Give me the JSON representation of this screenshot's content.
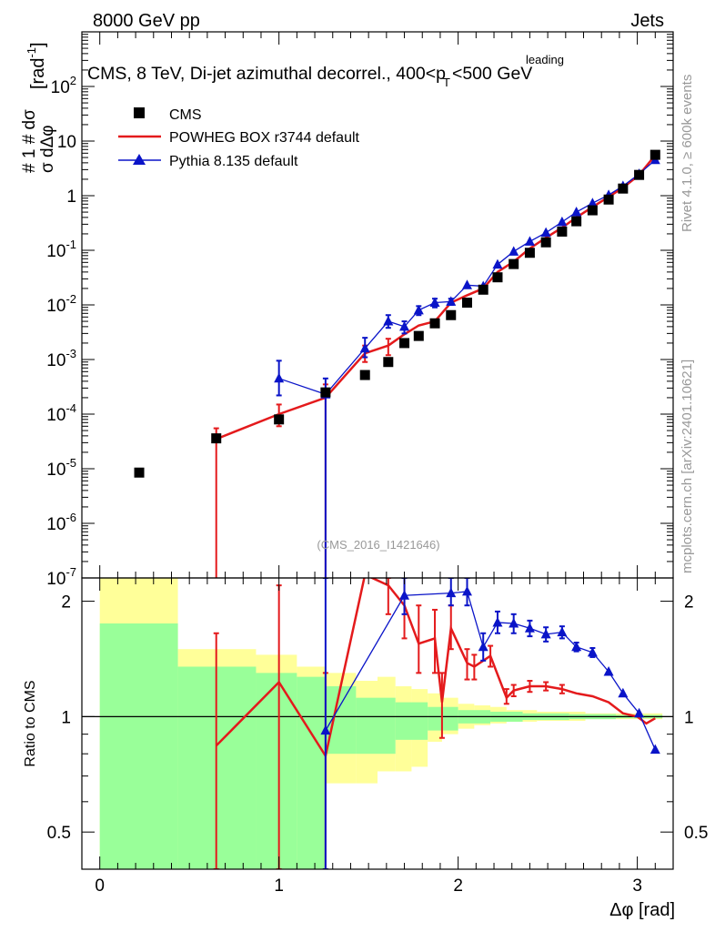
{
  "header": {
    "left": "8000 GeV pp",
    "right": "Jets"
  },
  "title": {
    "main": "CMS, 8 TeV, Di-jet azimuthal decorrel., 400<p",
    "sup": "leading",
    "sub": "T",
    "tail": "<500 GeV"
  },
  "ylabel": {
    "top": "# 1  # dσ",
    "bottom": "σ    dΔφ",
    "unit": "[rad",
    "unit_sup": "-1",
    "unit_close": "]"
  },
  "ratio_ylabel": "Ratio to CMS",
  "xlabel": "Δφ [rad]",
  "watermark": "(CMS_2016_I1421646)",
  "side_top": "Rivet 4.1.0, ≥ 600k events",
  "side_bottom": "mcplots.cern.ch [arXiv:2401.10621]",
  "legend": {
    "cms": "CMS",
    "powheg": "POWHEG BOX r3744 default",
    "pythia": "Pythia 8.135 default"
  },
  "colors": {
    "data": "#000000",
    "powheg": "#e41a1c",
    "pythia": "#0a14c8",
    "band_stat": "#99ff99",
    "band_total": "#ffff99"
  },
  "chart_data": {
    "type": "line",
    "xlim": [
      -0.1,
      3.2
    ],
    "main_ylim": [
      1e-07,
      1000
    ],
    "ratio_ylim": [
      0.4,
      2.3
    ],
    "main_yticks": [
      "10^-7",
      "10^-6",
      "10^-5",
      "10^-4",
      "10^-3",
      "10^-2",
      "10^-1",
      "1",
      "10",
      "10^2"
    ],
    "xticks": [
      "0",
      "1",
      "2",
      "3"
    ],
    "ratio_yticks": [
      "0.5",
      "1",
      "2"
    ],
    "x_edges": [
      0,
      0.436,
      0.872,
      1.1,
      1.26,
      1.43,
      1.55,
      1.65,
      1.74,
      1.83,
      1.91,
      2.0,
      2.09,
      2.18,
      2.27,
      2.36,
      2.44,
      2.53,
      2.62,
      2.71,
      2.8,
      2.88,
      2.97,
      3.05,
      3.14
    ],
    "cms": [
      {
        "x": 0.22,
        "y": 8.5e-06
      },
      {
        "x": 0.65,
        "y": 3.6e-05
      },
      {
        "x": 1.0,
        "y": 8e-05
      },
      {
        "x": 1.26,
        "y": 0.00025
      },
      {
        "x": 1.48,
        "y": 0.00052
      },
      {
        "x": 1.61,
        "y": 0.0009
      },
      {
        "x": 1.7,
        "y": 0.002
      },
      {
        "x": 1.78,
        "y": 0.0027
      },
      {
        "x": 1.87,
        "y": 0.0046
      },
      {
        "x": 1.96,
        "y": 0.0065
      },
      {
        "x": 2.05,
        "y": 0.011
      },
      {
        "x": 2.14,
        "y": 0.019
      },
      {
        "x": 2.22,
        "y": 0.032
      },
      {
        "x": 2.31,
        "y": 0.056
      },
      {
        "x": 2.4,
        "y": 0.09
      },
      {
        "x": 2.49,
        "y": 0.14
      },
      {
        "x": 2.58,
        "y": 0.22
      },
      {
        "x": 2.66,
        "y": 0.34
      },
      {
        "x": 2.75,
        "y": 0.54
      },
      {
        "x": 2.84,
        "y": 0.85
      },
      {
        "x": 2.92,
        "y": 1.35
      },
      {
        "x": 3.01,
        "y": 2.4
      },
      {
        "x": 3.1,
        "y": 5.6
      }
    ],
    "powheg": [
      {
        "x": 0.65,
        "y": 3.5e-05,
        "err_lo": 1e-08,
        "err_hi": 5.5e-05
      },
      {
        "x": 1.0,
        "y": 0.0001,
        "err_lo": 6e-05,
        "err_hi": 0.00015
      },
      {
        "x": 1.26,
        "y": 0.0002,
        "err_lo": 1e-08,
        "err_hi": 0.00035
      },
      {
        "x": 1.48,
        "y": 0.0013,
        "err_lo": 0.0009,
        "err_hi": 0.0018
      },
      {
        "x": 1.61,
        "y": 0.0018,
        "err_lo": 0.0012,
        "err_hi": 0.0024
      },
      {
        "x": 1.7,
        "y": 0.0029
      },
      {
        "x": 1.78,
        "y": 0.0042
      },
      {
        "x": 1.87,
        "y": 0.005
      },
      {
        "x": 1.96,
        "y": 0.011
      },
      {
        "x": 2.05,
        "y": 0.015
      },
      {
        "x": 2.14,
        "y": 0.02
      },
      {
        "x": 2.22,
        "y": 0.04
      },
      {
        "x": 2.31,
        "y": 0.062
      },
      {
        "x": 2.4,
        "y": 0.108
      },
      {
        "x": 2.49,
        "y": 0.17
      },
      {
        "x": 2.58,
        "y": 0.26
      },
      {
        "x": 2.66,
        "y": 0.4
      },
      {
        "x": 2.75,
        "y": 0.62
      },
      {
        "x": 2.84,
        "y": 0.95
      },
      {
        "x": 2.92,
        "y": 1.4
      },
      {
        "x": 3.01,
        "y": 2.4
      },
      {
        "x": 3.1,
        "y": 5.5
      }
    ],
    "pythia": [
      {
        "x": 1.0,
        "y": 0.00045,
        "err_lo": 0.00022,
        "err_hi": 0.00095
      },
      {
        "x": 1.26,
        "y": 0.00023,
        "err_lo": 1e-08,
        "err_hi": 0.00045
      },
      {
        "x": 1.48,
        "y": 0.0016,
        "err_lo": 0.0011,
        "err_hi": 0.0025
      },
      {
        "x": 1.61,
        "y": 0.005,
        "err_lo": 0.0038,
        "err_hi": 0.0065
      },
      {
        "x": 1.7,
        "y": 0.004,
        "err_lo": 0.003,
        "err_hi": 0.005
      },
      {
        "x": 1.78,
        "y": 0.008,
        "err_lo": 0.0065,
        "err_hi": 0.0095
      },
      {
        "x": 1.87,
        "y": 0.011,
        "err_lo": 0.009,
        "err_hi": 0.013
      },
      {
        "x": 1.96,
        "y": 0.0115,
        "err_lo": 0.01,
        "err_hi": 0.013
      },
      {
        "x": 2.05,
        "y": 0.023
      },
      {
        "x": 2.14,
        "y": 0.022
      },
      {
        "x": 2.22,
        "y": 0.055
      },
      {
        "x": 2.31,
        "y": 0.095
      },
      {
        "x": 2.4,
        "y": 0.145
      },
      {
        "x": 2.49,
        "y": 0.21
      },
      {
        "x": 2.58,
        "y": 0.33
      },
      {
        "x": 2.66,
        "y": 0.5
      },
      {
        "x": 2.75,
        "y": 0.73
      },
      {
        "x": 2.84,
        "y": 1.03
      },
      {
        "x": 2.92,
        "y": 1.5
      },
      {
        "x": 3.01,
        "y": 2.5
      },
      {
        "x": 3.1,
        "y": 4.5
      }
    ],
    "ratio_powheg": [
      {
        "x": 0.65,
        "y": 0.84,
        "lo": 0.4,
        "hi": 1.65
      },
      {
        "x": 1.0,
        "y": 1.23,
        "lo": 0.4,
        "hi": 2.2
      },
      {
        "x": 1.26,
        "y": 0.79,
        "lo": 0.4,
        "hi": 1.3
      },
      {
        "x": 1.48,
        "y": 2.4
      },
      {
        "x": 1.61,
        "y": 2.2,
        "lo": 1.85,
        "hi": 2.3
      },
      {
        "x": 1.7,
        "y": 1.95,
        "lo": 1.6,
        "hi": 2.3
      },
      {
        "x": 1.78,
        "y": 1.55,
        "lo": 1.3,
        "hi": 1.95
      },
      {
        "x": 1.87,
        "y": 1.6,
        "lo": 1.3,
        "hi": 1.9
      },
      {
        "x": 1.91,
        "y": 1.09,
        "lo": 0.88,
        "hi": 1.3
      },
      {
        "x": 1.96,
        "y": 1.7,
        "lo": 1.5,
        "hi": 1.95
      },
      {
        "x": 2.05,
        "y": 1.38,
        "lo": 1.25,
        "hi": 1.5
      },
      {
        "x": 2.09,
        "y": 1.35,
        "lo": 1.25,
        "hi": 1.45
      },
      {
        "x": 2.18,
        "y": 1.44,
        "lo": 1.35,
        "hi": 1.53
      },
      {
        "x": 2.27,
        "y": 1.12,
        "lo": 1.08,
        "hi": 1.18
      },
      {
        "x": 2.31,
        "y": 1.17,
        "lo": 1.13,
        "hi": 1.21
      },
      {
        "x": 2.4,
        "y": 1.2,
        "lo": 1.16,
        "hi": 1.24
      },
      {
        "x": 2.49,
        "y": 1.2,
        "lo": 1.17,
        "hi": 1.23
      },
      {
        "x": 2.58,
        "y": 1.18,
        "lo": 1.15,
        "hi": 1.21
      },
      {
        "x": 2.66,
        "y": 1.15
      },
      {
        "x": 2.75,
        "y": 1.13
      },
      {
        "x": 2.84,
        "y": 1.09
      },
      {
        "x": 2.92,
        "y": 1.02
      },
      {
        "x": 3.0,
        "y": 1.0
      },
      {
        "x": 3.05,
        "y": 0.96
      },
      {
        "x": 3.1,
        "y": 0.99
      }
    ],
    "ratio_pythia": [
      {
        "x": 1.26,
        "y": 0.92,
        "lo": 0.4,
        "hi": 2.3
      },
      {
        "x": 1.7,
        "y": 2.07,
        "lo": 1.85,
        "hi": 2.3
      },
      {
        "x": 1.96,
        "y": 2.1,
        "lo": 1.95,
        "hi": 2.3
      },
      {
        "x": 2.05,
        "y": 2.12,
        "lo": 1.95,
        "hi": 2.3
      },
      {
        "x": 2.14,
        "y": 1.52,
        "lo": 1.4,
        "hi": 1.65
      },
      {
        "x": 2.22,
        "y": 1.76,
        "lo": 1.65,
        "hi": 1.88
      },
      {
        "x": 2.31,
        "y": 1.75,
        "lo": 1.65,
        "hi": 1.85
      },
      {
        "x": 2.4,
        "y": 1.7,
        "lo": 1.62,
        "hi": 1.78
      },
      {
        "x": 2.49,
        "y": 1.64,
        "lo": 1.57,
        "hi": 1.71
      },
      {
        "x": 2.58,
        "y": 1.66,
        "lo": 1.6,
        "hi": 1.72
      },
      {
        "x": 2.66,
        "y": 1.52,
        "lo": 1.48,
        "hi": 1.56
      },
      {
        "x": 2.75,
        "y": 1.47,
        "lo": 1.43,
        "hi": 1.51
      },
      {
        "x": 2.84,
        "y": 1.31
      },
      {
        "x": 2.92,
        "y": 1.15
      },
      {
        "x": 3.01,
        "y": 1.02
      },
      {
        "x": 3.1,
        "y": 0.82
      }
    ],
    "band_stat": [
      [
        0.0,
        0.436,
        0.4,
        1.75
      ],
      [
        0.436,
        0.872,
        0.4,
        1.35
      ],
      [
        0.872,
        1.1,
        0.4,
        1.3
      ],
      [
        1.1,
        1.26,
        0.4,
        1.27
      ],
      [
        1.26,
        1.43,
        0.8,
        1.2
      ],
      [
        1.43,
        1.65,
        0.8,
        1.12
      ],
      [
        1.65,
        1.83,
        0.87,
        1.09
      ],
      [
        1.83,
        2.0,
        0.92,
        1.06
      ],
      [
        2.0,
        2.18,
        0.96,
        1.04
      ],
      [
        2.18,
        2.36,
        0.97,
        1.03
      ],
      [
        2.36,
        2.62,
        0.98,
        1.02
      ],
      [
        2.62,
        2.88,
        0.985,
        1.015
      ],
      [
        2.88,
        3.14,
        0.99,
        1.01
      ]
    ],
    "band_total": [
      [
        0.0,
        0.436,
        0.4,
        2.3
      ],
      [
        0.436,
        0.872,
        0.4,
        1.5
      ],
      [
        0.872,
        1.1,
        0.4,
        1.45
      ],
      [
        1.1,
        1.26,
        0.4,
        1.35
      ],
      [
        1.26,
        1.43,
        0.67,
        1.3
      ],
      [
        1.43,
        1.55,
        0.67,
        1.24
      ],
      [
        1.55,
        1.65,
        0.72,
        1.27
      ],
      [
        1.65,
        1.74,
        0.72,
        1.2
      ],
      [
        1.74,
        1.83,
        0.74,
        1.18
      ],
      [
        1.83,
        1.91,
        0.86,
        1.15
      ],
      [
        1.91,
        2.0,
        0.9,
        1.12
      ],
      [
        2.0,
        2.09,
        0.93,
        1.08
      ],
      [
        2.09,
        2.18,
        0.95,
        1.07
      ],
      [
        2.18,
        2.27,
        0.96,
        1.06
      ],
      [
        2.27,
        2.44,
        0.97,
        1.04
      ],
      [
        2.44,
        2.71,
        0.975,
        1.03
      ],
      [
        2.71,
        3.14,
        0.985,
        1.02
      ]
    ]
  }
}
